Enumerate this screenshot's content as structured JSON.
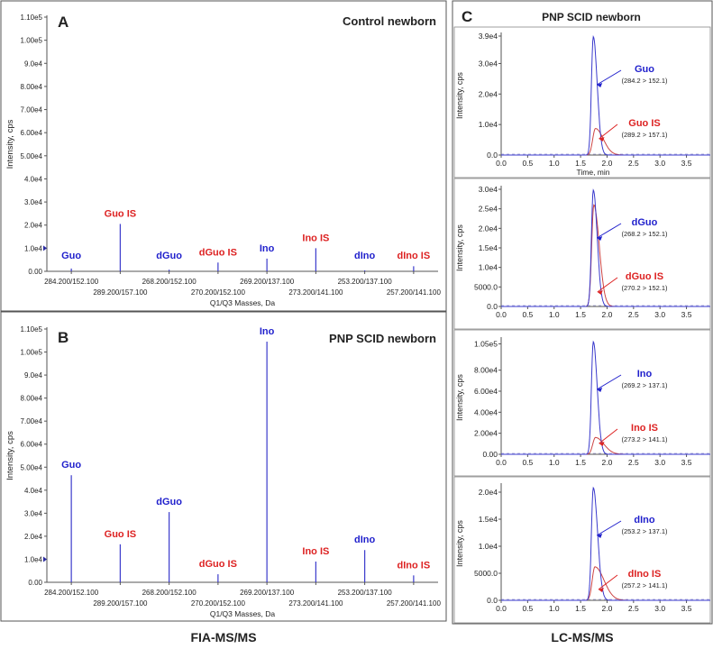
{
  "colors": {
    "blue": "#1f1fcc",
    "red": "#dd2222",
    "axis": "#555555",
    "text": "#222222",
    "trace": "#3a3acc",
    "traceRed": "#cc4444"
  },
  "labels": {
    "A": "A",
    "B": "B",
    "C": "C"
  },
  "footer": {
    "left": "FIA-MS/MS",
    "right": "LC-MS/MS"
  },
  "chart_data": [
    {
      "type": "bar",
      "id": "A",
      "title": "Control newborn",
      "xlabel": "Q1/Q3 Masses, Da",
      "ylabel": "Intensity, cps",
      "ylim": [
        0,
        110000
      ],
      "yticks": [
        "0.00",
        "1.0e4",
        "2.0e4",
        "3.0e4",
        "4.0e4",
        "5.00e4",
        "6.00e4",
        "7.00e4",
        "8.00e4",
        "9.0e4",
        "1.00e5",
        "1.10e5"
      ],
      "categories": [
        "284.200/152.100",
        "289.200/157.100",
        "268.200/152.100",
        "270.200/152.100",
        "269.200/137.100",
        "273.200/141.100",
        "253.200/137.100",
        "257.200/141.100"
      ],
      "compounds": [
        "Guo",
        "Guo IS",
        "dGuo",
        "dGuo IS",
        "Ino",
        "Ino IS",
        "dIno",
        "dIno IS"
      ],
      "compound_colors": [
        "blue",
        "red",
        "blue",
        "red",
        "blue",
        "red",
        "blue",
        "red"
      ],
      "values": [
        1200,
        20500,
        700,
        3800,
        5500,
        10000,
        400,
        2200
      ]
    },
    {
      "type": "bar",
      "id": "B",
      "title": "PNP SCID newborn",
      "xlabel": "Q1/Q3 Masses, Da",
      "ylabel": "Intensity, cps",
      "ylim": [
        0,
        110000
      ],
      "yticks": [
        "0.00",
        "1.0e4",
        "2.0e4",
        "3.0e4",
        "4.0e4",
        "5.00e4",
        "6.00e4",
        "7.00e4",
        "8.00e4",
        "9.0e4",
        "1.00e5",
        "1.10e5"
      ],
      "categories": [
        "284.200/152.100",
        "289.200/157.100",
        "268.200/152.100",
        "270.200/152.100",
        "269.200/137.100",
        "273.200/141.100",
        "253.200/137.100",
        "257.200/141.100"
      ],
      "compounds": [
        "Guo",
        "Guo IS",
        "dGuo",
        "dGuo IS",
        "Ino",
        "Ino IS",
        "dIno",
        "dIno IS"
      ],
      "compound_colors": [
        "blue",
        "red",
        "blue",
        "red",
        "blue",
        "red",
        "blue",
        "red"
      ],
      "values": [
        46500,
        16500,
        30500,
        3500,
        104500,
        9000,
        14000,
        3000
      ]
    },
    {
      "type": "line",
      "panel_title": "PNP SCID newborn",
      "xlabel": "Time, min",
      "ylabel": "Intensity, cps",
      "xticks": [
        "0.0",
        "0.5",
        "1.0",
        "1.5",
        "2.0",
        "2.5",
        "3.0",
        "3.5"
      ],
      "xlim": [
        0,
        3.95
      ],
      "subplots": [
        {
          "ylim": [
            0,
            39000
          ],
          "yticks": [
            {
              "v": 0,
              "t": "0.0"
            },
            {
              "v": 10000,
              "t": "1.0e4"
            },
            {
              "v": 20000,
              "t": "2.0e4"
            },
            {
              "v": 30000,
              "t": "3.0e4"
            },
            {
              "v": 39000,
              "t": "3.9e4"
            }
          ],
          "series": [
            {
              "name": "Guo",
              "transition": "(284.2 > 152.1)",
              "color": "blue",
              "peak": 38800,
              "center": 1.74,
              "width": 0.035,
              "tail": 0.5
            },
            {
              "name": "Guo IS",
              "transition": "(289.2 > 157.1)",
              "color": "red",
              "peak": 8700,
              "center": 1.78,
              "width": 0.05,
              "tail": 0.9
            }
          ]
        },
        {
          "ylim": [
            0,
            30000
          ],
          "yticks": [
            {
              "v": 0,
              "t": "0.0"
            },
            {
              "v": 5000,
              "t": "5000.0"
            },
            {
              "v": 10000,
              "t": "1.0e4"
            },
            {
              "v": 15000,
              "t": "1.5e4"
            },
            {
              "v": 20000,
              "t": "2.0e4"
            },
            {
              "v": 25000,
              "t": "2.5e4"
            },
            {
              "v": 30000,
              "t": "3.0e4"
            }
          ],
          "series": [
            {
              "name": "dGuo",
              "transition": "(268.2 > 152.1)",
              "color": "blue",
              "peak": 29800,
              "center": 1.74,
              "width": 0.035,
              "tail": 0.5
            },
            {
              "name": "dGuo IS",
              "transition": "(270.2 > 152.1)",
              "color": "red",
              "peak": 26000,
              "center": 1.75,
              "width": 0.04,
              "tail": 0.7
            }
          ]
        },
        {
          "ylim": [
            0,
            108000
          ],
          "yticks": [
            {
              "v": 0,
              "t": "0.00"
            },
            {
              "v": 20000,
              "t": "2.00e4"
            },
            {
              "v": 40000,
              "t": "4.00e4"
            },
            {
              "v": 60000,
              "t": "6.00e4"
            },
            {
              "v": 80000,
              "t": "8.00e4"
            },
            {
              "v": 105000,
              "t": "1.05e5"
            }
          ],
          "series": [
            {
              "name": "Ino",
              "transition": "(269.2 > 137.1)",
              "color": "blue",
              "peak": 107000,
              "center": 1.74,
              "width": 0.035,
              "tail": 0.5
            },
            {
              "name": "Ino IS",
              "transition": "(273.2 > 141.1)",
              "color": "red",
              "peak": 16000,
              "center": 1.78,
              "width": 0.05,
              "tail": 1.0
            }
          ]
        },
        {
          "ylim": [
            0,
            21000
          ],
          "yticks": [
            {
              "v": 0,
              "t": "0.0"
            },
            {
              "v": 5000,
              "t": "5000.0"
            },
            {
              "v": 10000,
              "t": "1.0e4"
            },
            {
              "v": 15000,
              "t": "1.5e4"
            },
            {
              "v": 20000,
              "t": "2.0e4"
            }
          ],
          "series": [
            {
              "name": "dIno",
              "transition": "(253.2 > 137.1)",
              "color": "blue",
              "peak": 20800,
              "center": 1.74,
              "width": 0.035,
              "tail": 0.6
            },
            {
              "name": "dIno IS",
              "transition": "(257.2 > 141.1)",
              "color": "red",
              "peak": 6200,
              "center": 1.77,
              "width": 0.05,
              "tail": 1.1
            }
          ]
        }
      ]
    }
  ]
}
